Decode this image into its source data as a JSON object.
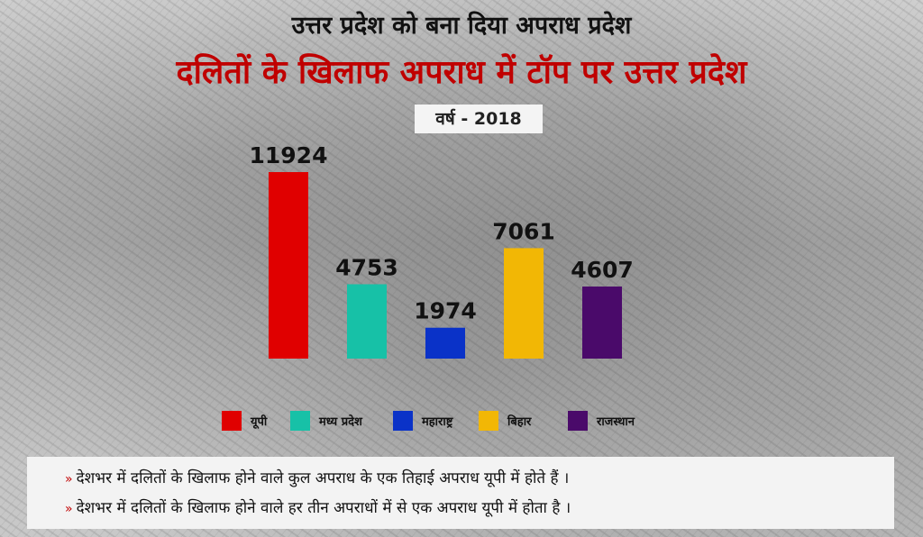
{
  "header": {
    "title": "उत्तर प्रदेश को बना दिया अपराध प्रदेश",
    "subtitle": "दलितों के खिलाफ अपराध में टॉप पर उत्तर प्रदेश",
    "year_label": "वर्ष - 2018"
  },
  "chart_data": {
    "type": "bar",
    "categories": [
      "यूपी",
      "मध्य प्रदेश",
      "महाराष्ट्र",
      "बिहार",
      "राजस्थान"
    ],
    "values": [
      11924,
      4753,
      1974,
      7061,
      4607
    ],
    "colors": [
      "#e00000",
      "#17c1a7",
      "#0a32c8",
      "#f2b705",
      "#4a0a6a"
    ],
    "title": "दलितों के खिलाफ अपराध में टॉप पर उत्तर प्रदेश",
    "data_labels": true,
    "legend_position": "bottom"
  },
  "notes": [
    {
      "mark": "»",
      "text": "देशभर में दलितों के खिलाफ होने वाले कुल अपराध के एक तिहाई अपराध यूपी में होते हैं ।"
    },
    {
      "mark": "»",
      "text": "देशभर में दलितों के खिलाफ होने वाले हर तीन अपराधों में से एक अपराध यूपी में होता है ।"
    }
  ]
}
